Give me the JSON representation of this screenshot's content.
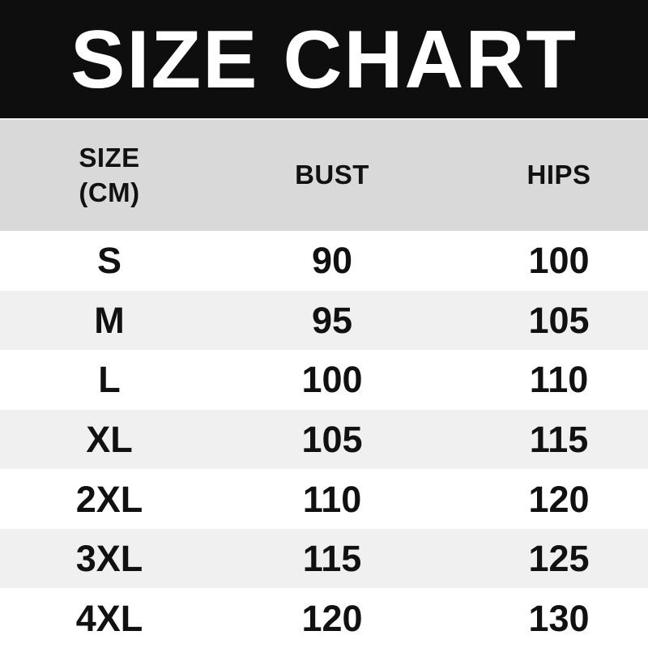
{
  "title": "SIZE CHART",
  "table": {
    "header": {
      "size_line1": "SIZE",
      "size_line2": "(CM)",
      "bust": "BUST",
      "hips": "HIPS"
    },
    "rows": [
      {
        "size": "S",
        "bust": "90",
        "hips": "100"
      },
      {
        "size": "M",
        "bust": "95",
        "hips": "105"
      },
      {
        "size": "L",
        "bust": "100",
        "hips": "110"
      },
      {
        "size": "XL",
        "bust": "105",
        "hips": "115"
      },
      {
        "size": "2XL",
        "bust": "110",
        "hips": "120"
      },
      {
        "size": "3XL",
        "bust": "115",
        "hips": "125"
      },
      {
        "size": "4XL",
        "bust": "120",
        "hips": "130"
      }
    ]
  },
  "chart_data": {
    "type": "table",
    "title": "SIZE CHART",
    "columns": [
      "SIZE (CM)",
      "BUST",
      "HIPS"
    ],
    "rows": [
      [
        "S",
        90,
        100
      ],
      [
        "M",
        95,
        105
      ],
      [
        "L",
        100,
        110
      ],
      [
        "XL",
        105,
        115
      ],
      [
        "2XL",
        110,
        120
      ],
      [
        "3XL",
        115,
        125
      ],
      [
        "4XL",
        120,
        130
      ]
    ]
  },
  "colors": {
    "banner_bg": "#0e0e0e",
    "banner_text": "#ffffff",
    "header_bg": "#d9d9d9",
    "row_bg": "#ffffff",
    "row_alt_bg": "#f0f0f0",
    "text": "#111111"
  }
}
